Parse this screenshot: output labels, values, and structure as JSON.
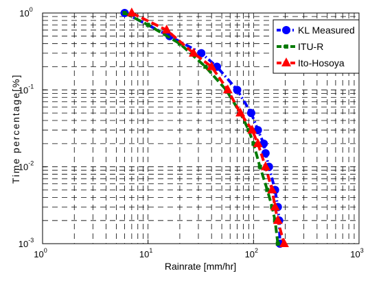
{
  "chart_data": {
    "type": "line",
    "xlabel": "Rainrate [mm/hr]",
    "ylabel": "Time percentage[%]",
    "xscale": "log",
    "yscale": "log",
    "xlim": [
      1,
      1000
    ],
    "ylim": [
      0.001,
      1
    ],
    "x_tick_labels": [
      {
        "value": 1,
        "base": "10",
        "exp": "0"
      },
      {
        "value": 10,
        "base": "10",
        "exp": "1"
      },
      {
        "value": 100,
        "base": "10",
        "exp": "2"
      },
      {
        "value": 1000,
        "base": "10",
        "exp": "3"
      }
    ],
    "y_tick_labels": [
      {
        "value": 1,
        "base": "10",
        "exp": "0"
      },
      {
        "value": 0.1,
        "base": "10",
        "exp": "-1"
      },
      {
        "value": 0.01,
        "base": "10",
        "exp": "-2"
      },
      {
        "value": 0.001,
        "base": "10",
        "exp": "-3"
      }
    ],
    "grid": true,
    "legend_position": "top-right",
    "series": [
      {
        "name": "KL Measured",
        "color": "#0000ff",
        "marker": "circle",
        "line_style": "dash-dot",
        "points": [
          {
            "x": 6,
            "y": 1
          },
          {
            "x": 16,
            "y": 0.5
          },
          {
            "x": 32,
            "y": 0.3
          },
          {
            "x": 45,
            "y": 0.2
          },
          {
            "x": 70,
            "y": 0.1
          },
          {
            "x": 95,
            "y": 0.05
          },
          {
            "x": 110,
            "y": 0.03
          },
          {
            "x": 125,
            "y": 0.02
          },
          {
            "x": 130,
            "y": 0.015
          },
          {
            "x": 140,
            "y": 0.01
          },
          {
            "x": 160,
            "y": 0.005
          },
          {
            "x": 170,
            "y": 0.003
          },
          {
            "x": 175,
            "y": 0.002
          },
          {
            "x": 178,
            "y": 0.001
          }
        ]
      },
      {
        "name": "ITU-R",
        "color": "#007a00",
        "marker": "square",
        "line_style": "dashed",
        "points": [
          {
            "x": 6,
            "y": 1
          },
          {
            "x": 10,
            "y": 0.7
          },
          {
            "x": 20,
            "y": 0.4
          },
          {
            "x": 35,
            "y": 0.2
          },
          {
            "x": 55,
            "y": 0.1
          },
          {
            "x": 75,
            "y": 0.05
          },
          {
            "x": 90,
            "y": 0.03
          },
          {
            "x": 100,
            "y": 0.02
          },
          {
            "x": 115,
            "y": 0.01
          },
          {
            "x": 135,
            "y": 0.005
          },
          {
            "x": 150,
            "y": 0.003
          },
          {
            "x": 160,
            "y": 0.002
          },
          {
            "x": 170,
            "y": 0.001
          }
        ]
      },
      {
        "name": "Ito-Hosoya",
        "color": "#ff0000",
        "marker": "triangle",
        "line_style": "dashed",
        "points": [
          {
            "x": 7,
            "y": 1
          },
          {
            "x": 15,
            "y": 0.6
          },
          {
            "x": 27,
            "y": 0.3
          },
          {
            "x": 40,
            "y": 0.2
          },
          {
            "x": 57,
            "y": 0.1
          },
          {
            "x": 75,
            "y": 0.05
          },
          {
            "x": 97,
            "y": 0.03
          },
          {
            "x": 110,
            "y": 0.02
          },
          {
            "x": 130,
            "y": 0.01
          },
          {
            "x": 150,
            "y": 0.005
          },
          {
            "x": 160,
            "y": 0.003
          },
          {
            "x": 170,
            "y": 0.002
          },
          {
            "x": 195,
            "y": 0.001
          }
        ]
      }
    ]
  }
}
